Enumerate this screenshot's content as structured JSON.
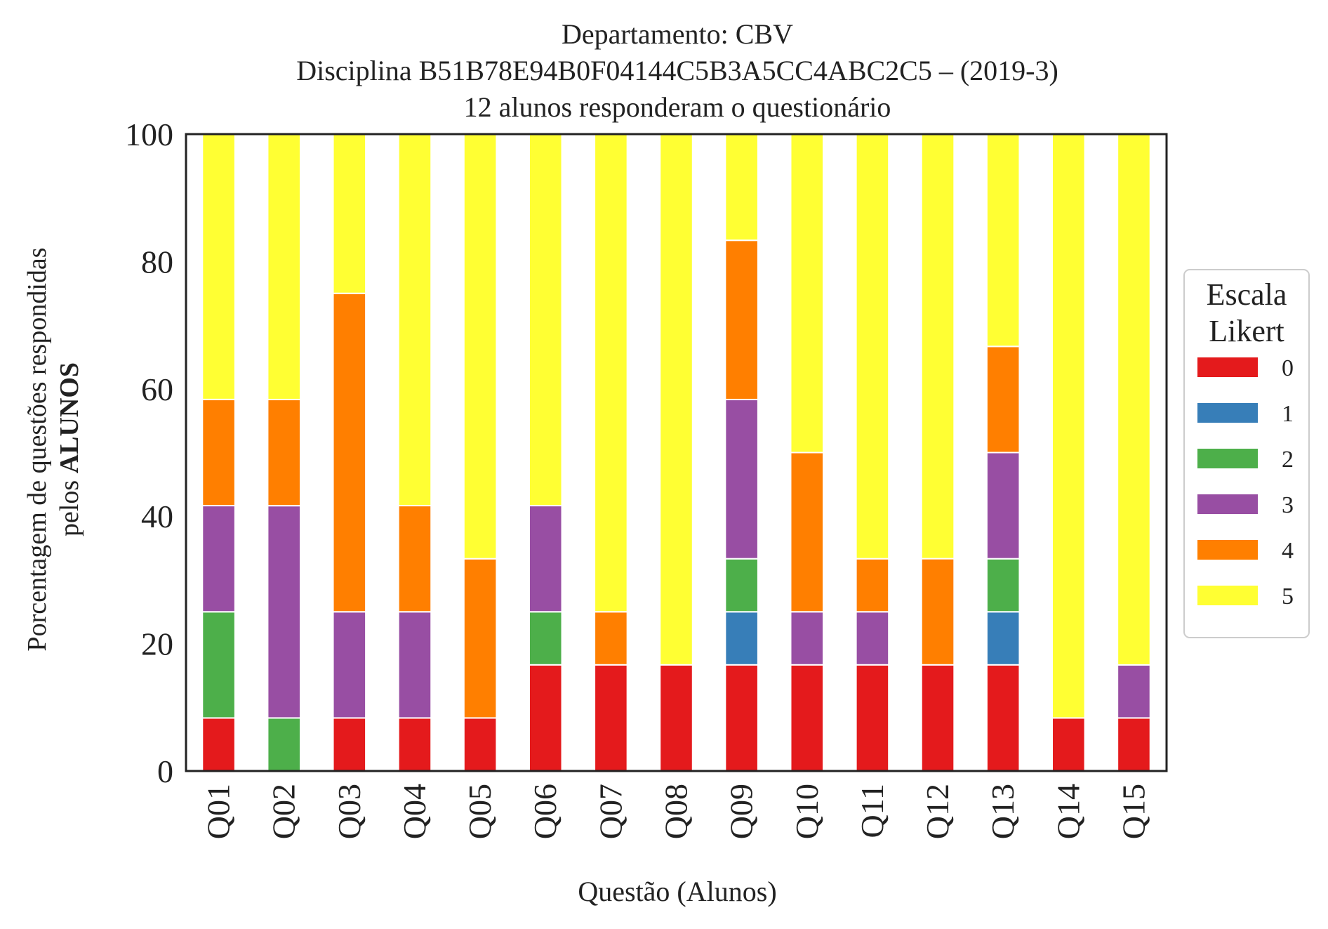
{
  "chart_data": {
    "type": "bar",
    "stacked": true,
    "title_lines": [
      "Departamento: CBV",
      "Disciplina B51B78E94B0F04144C5B3A5CC4ABC2C5 – (2019-3)",
      "12 alunos responderam o questionário"
    ],
    "ylabel_line1": "Porcentagem de questões respondidas",
    "ylabel_line2_prefix": "pelos ",
    "ylabel_line2_bold": "ALUNOS",
    "xlabel": "Questão (Alunos)",
    "ylim": [
      0,
      100
    ],
    "yticks": [
      0,
      20,
      40,
      60,
      80,
      100
    ],
    "categories": [
      "Q01",
      "Q02",
      "Q03",
      "Q04",
      "Q05",
      "Q06",
      "Q07",
      "Q08",
      "Q09",
      "Q10",
      "Q11",
      "Q12",
      "Q13",
      "Q14",
      "Q15"
    ],
    "legend": {
      "title_lines": [
        "Escala",
        "Likert"
      ],
      "placement": "right"
    },
    "grid": false,
    "series": [
      {
        "name": "0",
        "color": "#e41a1c",
        "values": [
          8.33,
          0,
          8.33,
          8.33,
          8.33,
          16.67,
          16.67,
          16.67,
          16.67,
          16.67,
          16.67,
          16.67,
          16.67,
          8.33,
          8.33
        ]
      },
      {
        "name": "1",
        "color": "#377eb8",
        "values": [
          0,
          0,
          0,
          0,
          0,
          0,
          0,
          0,
          8.33,
          0,
          0,
          0,
          8.33,
          0,
          0
        ]
      },
      {
        "name": "2",
        "color": "#4daf4a",
        "values": [
          16.67,
          8.33,
          0,
          0,
          0,
          8.33,
          0,
          0,
          8.33,
          0,
          0,
          0,
          8.33,
          0,
          0
        ]
      },
      {
        "name": "3",
        "color": "#984ea3",
        "values": [
          16.67,
          33.33,
          16.67,
          16.67,
          0,
          16.67,
          0,
          0,
          25,
          8.33,
          8.33,
          0,
          16.67,
          0,
          8.33
        ]
      },
      {
        "name": "4",
        "color": "#ff7f00",
        "values": [
          16.67,
          16.67,
          50,
          16.67,
          25,
          0,
          8.33,
          0,
          25,
          25,
          8.33,
          16.67,
          16.67,
          0,
          0
        ]
      },
      {
        "name": "5",
        "color": "#ffff33",
        "values": [
          41.67,
          41.67,
          25,
          58.33,
          66.67,
          58.33,
          75,
          83.33,
          16.67,
          50,
          66.67,
          66.67,
          33.33,
          91.67,
          83.33
        ]
      }
    ]
  }
}
